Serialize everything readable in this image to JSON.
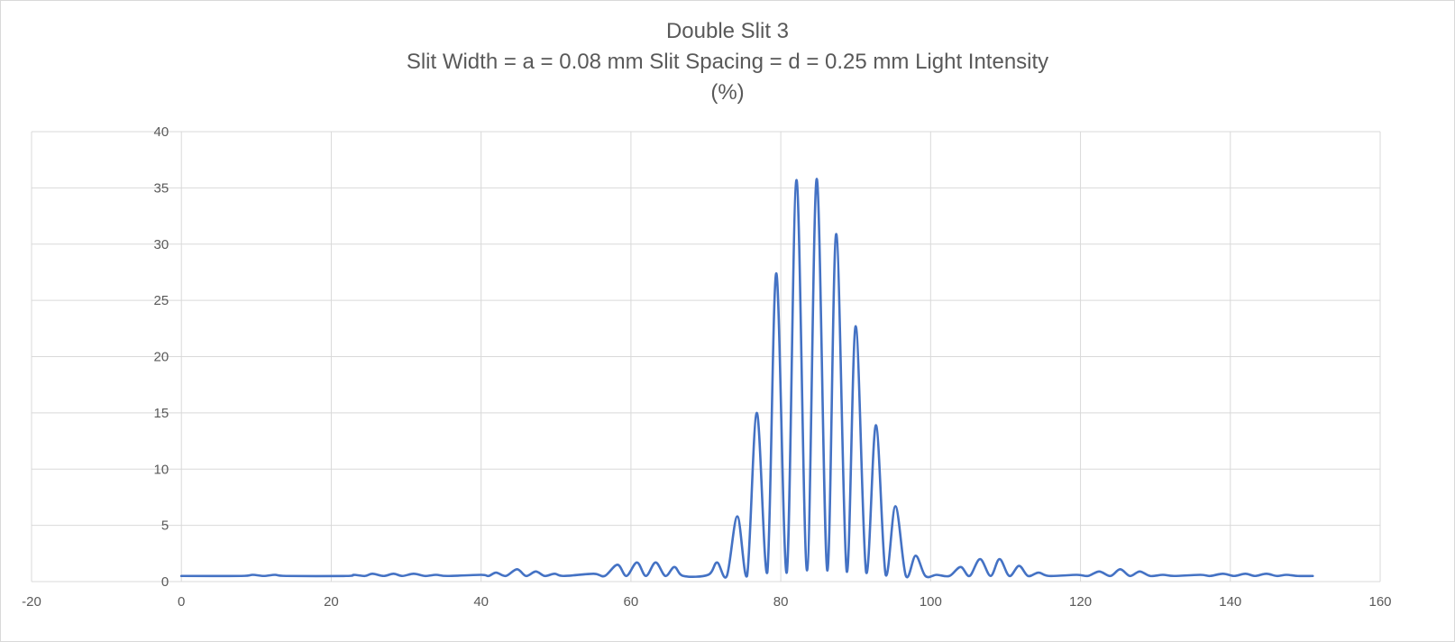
{
  "chart_data": {
    "type": "scatter",
    "mode": "smooth-line",
    "title_lines": [
      "Double Slit 3",
      "Slit Width = a = 0.08 mm Slit Spacing = d = 0.25 mm Light Intensity",
      "(%)"
    ],
    "xlabel": "",
    "ylabel": "",
    "xlim": [
      -20,
      160
    ],
    "ylim": [
      0,
      40
    ],
    "x_ticks": [
      -20,
      0,
      20,
      40,
      60,
      80,
      100,
      120,
      140,
      160
    ],
    "y_ticks": [
      0,
      5,
      10,
      15,
      20,
      25,
      30,
      35,
      40
    ],
    "grid": true,
    "legend": "none",
    "series": [
      {
        "color": "#4472c4",
        "points": [
          [
            0,
            0.5
          ],
          [
            8,
            0.5
          ],
          [
            9.5,
            0.6
          ],
          [
            11,
            0.5
          ],
          [
            12.5,
            0.6
          ],
          [
            14,
            0.5
          ],
          [
            22,
            0.5
          ],
          [
            23,
            0.6
          ],
          [
            24.5,
            0.5
          ],
          [
            25.5,
            0.7
          ],
          [
            27,
            0.5
          ],
          [
            28.3,
            0.7
          ],
          [
            29.5,
            0.5
          ],
          [
            31,
            0.7
          ],
          [
            32.5,
            0.5
          ],
          [
            34,
            0.6
          ],
          [
            35.5,
            0.5
          ],
          [
            40,
            0.6
          ],
          [
            41,
            0.5
          ],
          [
            42,
            0.8
          ],
          [
            43.3,
            0.5
          ],
          [
            44.8,
            1.1
          ],
          [
            46,
            0.5
          ],
          [
            47.3,
            0.9
          ],
          [
            48.5,
            0.5
          ],
          [
            49.8,
            0.7
          ],
          [
            51,
            0.5
          ],
          [
            55,
            0.7
          ],
          [
            56.5,
            0.5
          ],
          [
            58.2,
            1.5
          ],
          [
            59.4,
            0.5
          ],
          [
            60.8,
            1.7
          ],
          [
            62,
            0.5
          ],
          [
            63.3,
            1.7
          ],
          [
            64.6,
            0.5
          ],
          [
            65.8,
            1.3
          ],
          [
            67,
            0.5
          ],
          [
            70.3,
            0.6
          ],
          [
            71.5,
            1.7
          ],
          [
            72.8,
            0.5
          ],
          [
            74.2,
            5.8
          ],
          [
            75.5,
            0.5
          ],
          [
            76.8,
            15.0
          ],
          [
            78.2,
            0.8
          ],
          [
            79.4,
            27.4
          ],
          [
            80.8,
            0.8
          ],
          [
            82.1,
            35.7
          ],
          [
            83.5,
            1.0
          ],
          [
            84.8,
            35.8
          ],
          [
            86.2,
            1.0
          ],
          [
            87.4,
            30.9
          ],
          [
            88.8,
            0.9
          ],
          [
            90.0,
            22.7
          ],
          [
            91.4,
            0.8
          ],
          [
            92.7,
            13.9
          ],
          [
            94.0,
            0.6
          ],
          [
            95.3,
            6.7
          ],
          [
            96.7,
            0.5
          ],
          [
            98.0,
            2.3
          ],
          [
            99.3,
            0.5
          ],
          [
            100.8,
            0.6
          ],
          [
            102.5,
            0.5
          ],
          [
            104.0,
            1.3
          ],
          [
            105.2,
            0.5
          ],
          [
            106.6,
            2.0
          ],
          [
            108.0,
            0.5
          ],
          [
            109.2,
            2.0
          ],
          [
            110.5,
            0.5
          ],
          [
            111.8,
            1.4
          ],
          [
            113.0,
            0.5
          ],
          [
            114.4,
            0.8
          ],
          [
            115.8,
            0.5
          ],
          [
            119.5,
            0.6
          ],
          [
            121,
            0.5
          ],
          [
            122.5,
            0.9
          ],
          [
            124,
            0.5
          ],
          [
            125.3,
            1.1
          ],
          [
            126.6,
            0.5
          ],
          [
            127.9,
            0.9
          ],
          [
            129.3,
            0.5
          ],
          [
            131,
            0.6
          ],
          [
            132.5,
            0.5
          ],
          [
            136,
            0.6
          ],
          [
            137.3,
            0.5
          ],
          [
            139,
            0.7
          ],
          [
            140.5,
            0.5
          ],
          [
            142,
            0.7
          ],
          [
            143.3,
            0.5
          ],
          [
            144.8,
            0.7
          ],
          [
            146.2,
            0.5
          ],
          [
            147.5,
            0.6
          ],
          [
            149,
            0.5
          ],
          [
            151,
            0.5
          ]
        ]
      }
    ]
  }
}
